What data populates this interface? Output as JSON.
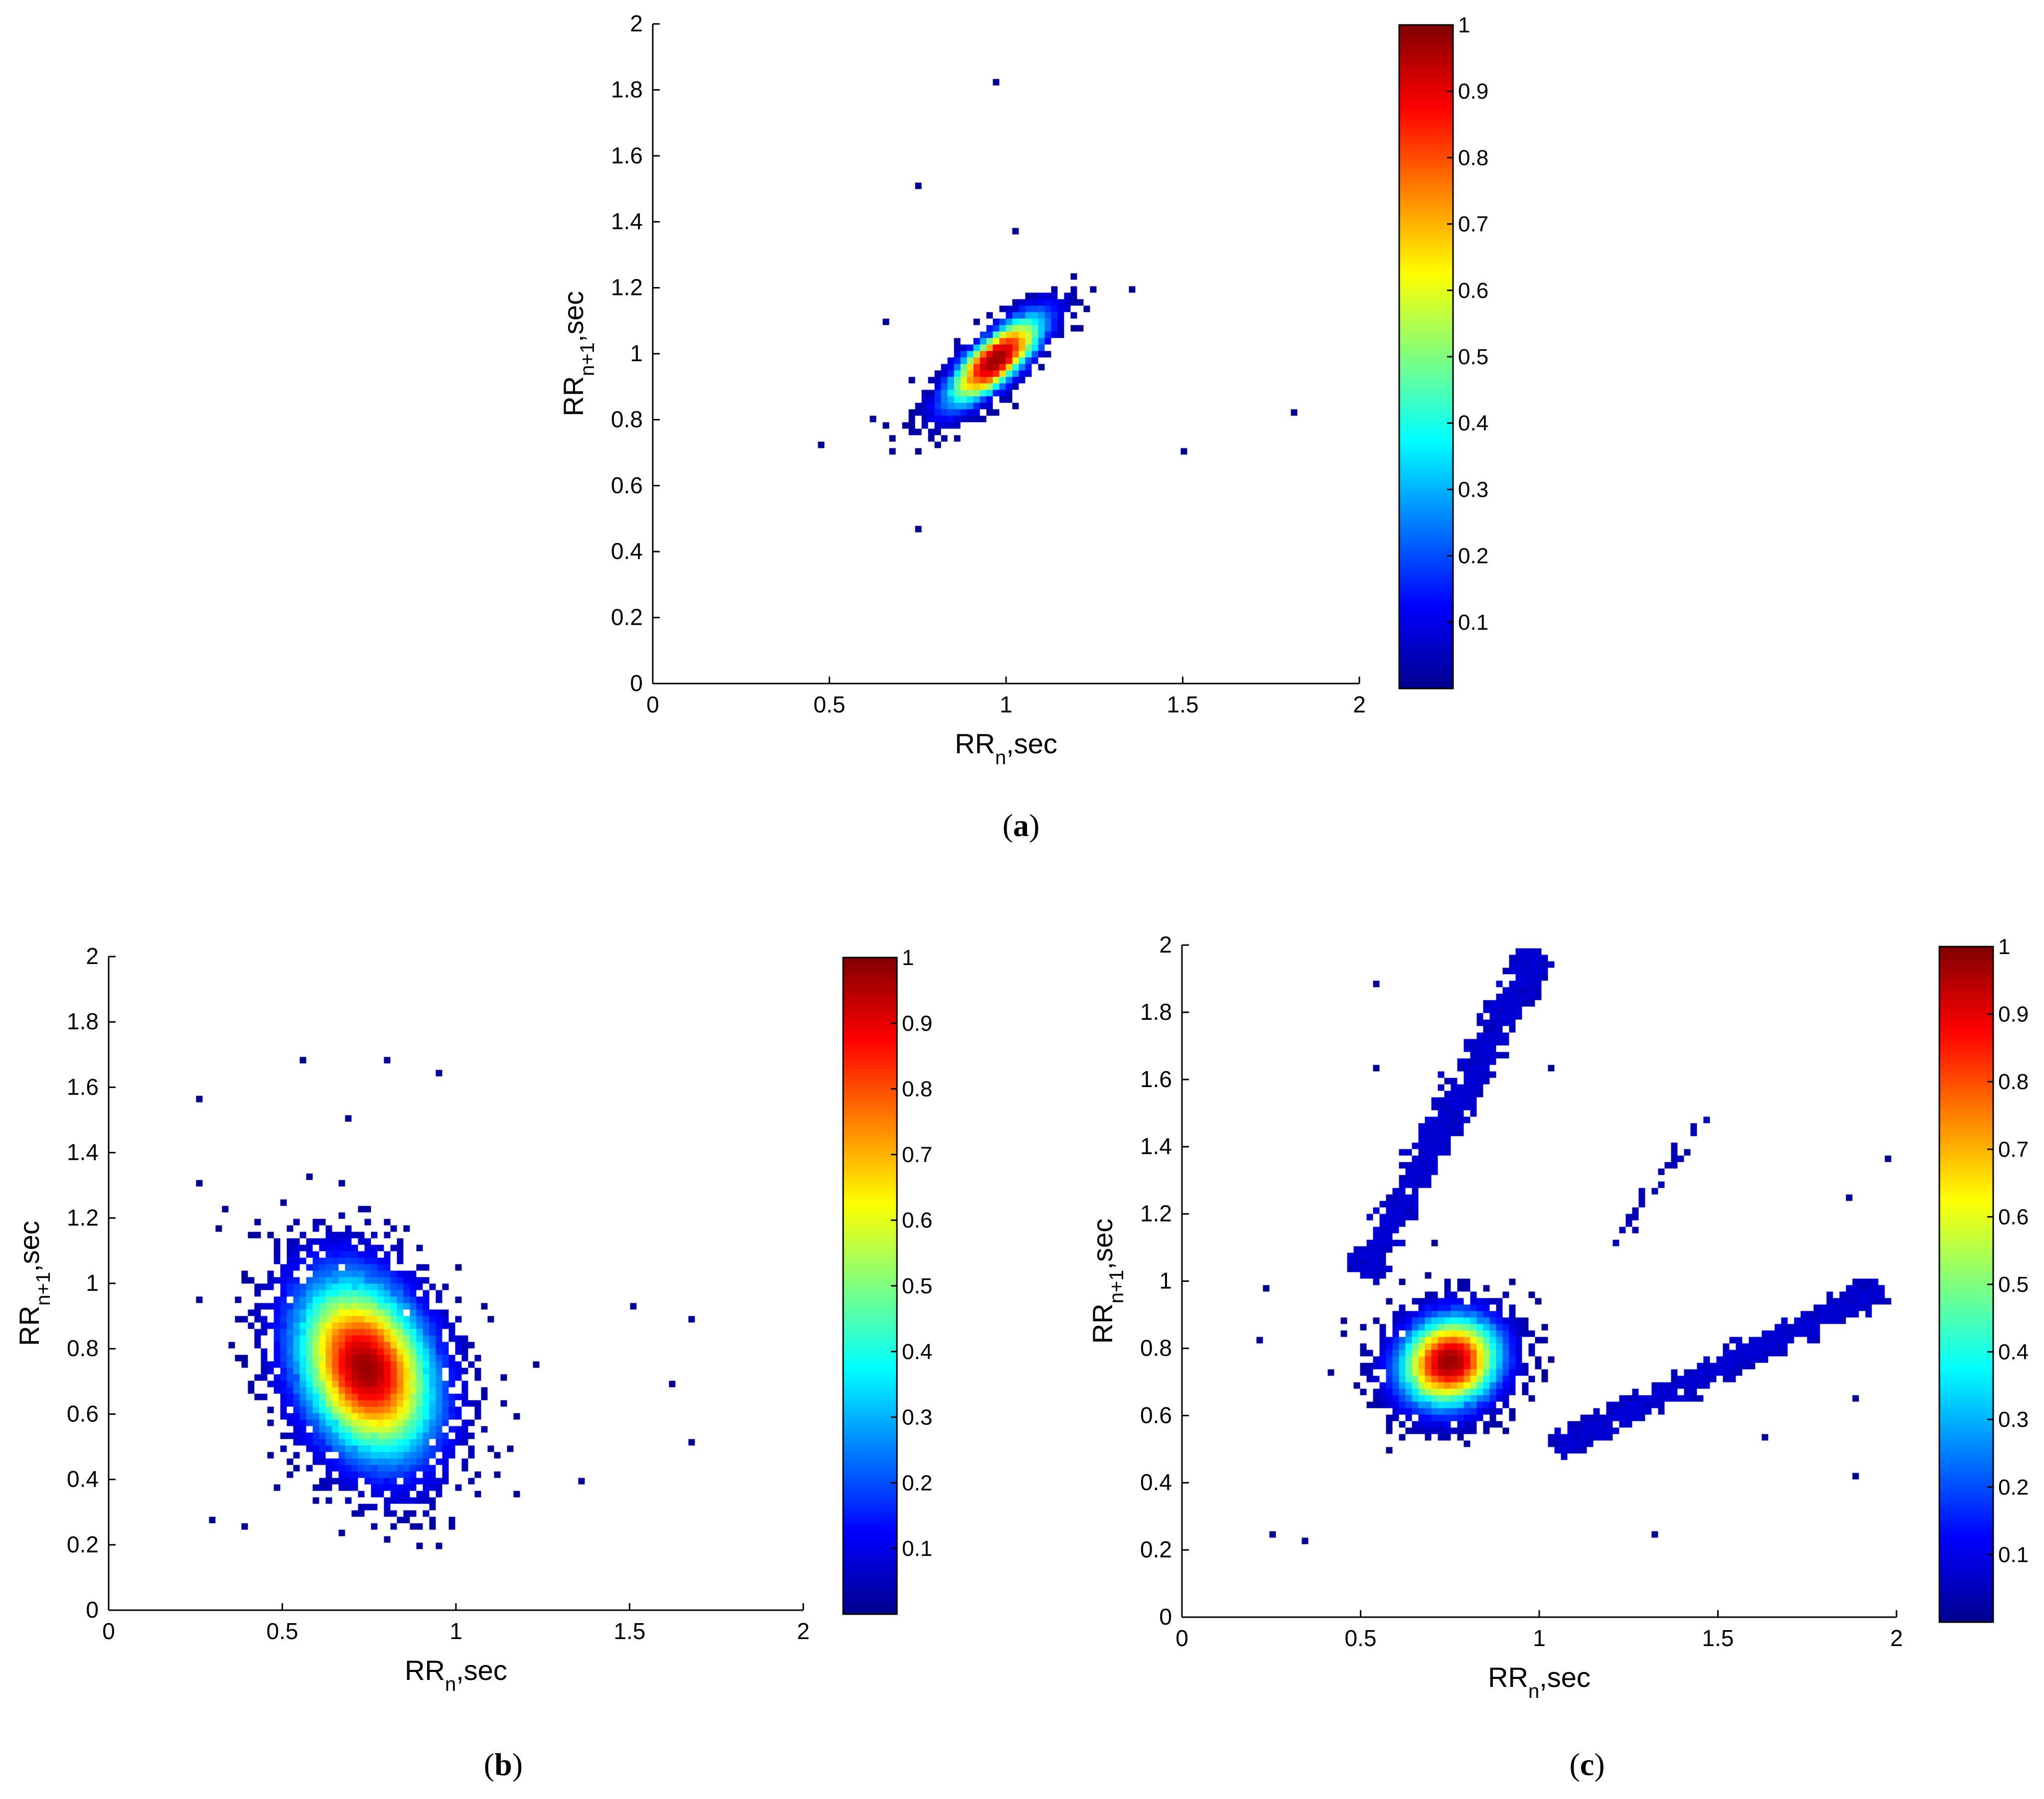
{
  "panels": [
    {
      "caption_letter": "a",
      "chart_data": {
        "type": "heatmap",
        "xlabel_main": "RR",
        "xlabel_sub": "n",
        "xlabel_rest": ",sec",
        "ylabel_main": "RR",
        "ylabel_sub": "n+1",
        "ylabel_rest": ",sec",
        "xlim": [
          0,
          2
        ],
        "ylim": [
          0,
          2
        ],
        "xticks": [
          "0",
          "0.5",
          "1",
          "1.5",
          "2"
        ],
        "yticks": [
          "0",
          "0.2",
          "0.4",
          "0.6",
          "0.8",
          "1",
          "1.2",
          "1.4",
          "1.6",
          "1.8",
          "2"
        ],
        "colorbar": {
          "colormap": "jet",
          "range": [
            0,
            1
          ],
          "ticks": [
            "0.1",
            "0.2",
            "0.3",
            "0.4",
            "0.5",
            "0.6",
            "0.7",
            "0.8",
            "0.9",
            "1"
          ]
        },
        "clusters": [
          {
            "center": [
              0.97,
              0.98
            ],
            "spread_major": 0.21,
            "spread_minor": 0.035,
            "angle_deg": 45,
            "count": 2600,
            "peak_density": 1.0
          }
        ],
        "outliers": [
          [
            0.98,
            1.82
          ],
          [
            0.75,
            1.5
          ],
          [
            1.5,
            0.7
          ],
          [
            1.82,
            0.83
          ],
          [
            1.03,
            1.37
          ],
          [
            0.76,
            0.46
          ],
          [
            0.63,
            0.8
          ],
          [
            0.66,
            1.1
          ],
          [
            1.35,
            1.2
          ],
          [
            0.48,
            0.72
          ]
        ]
      }
    },
    {
      "caption_letter": "b",
      "chart_data": {
        "type": "heatmap",
        "xlabel_main": "RR",
        "xlabel_sub": "n",
        "xlabel_rest": ",sec",
        "ylabel_main": "RR",
        "ylabel_sub": "n+1",
        "ylabel_rest": ",sec",
        "xlim": [
          0,
          2
        ],
        "ylim": [
          0,
          2
        ],
        "xticks": [
          "0",
          "0.5",
          "1",
          "1.5",
          "2"
        ],
        "yticks": [
          "0",
          "0.2",
          "0.4",
          "0.6",
          "0.8",
          "1",
          "1.2",
          "1.4",
          "1.6",
          "1.8",
          "2"
        ],
        "colorbar": {
          "colormap": "jet",
          "range": [
            0,
            1
          ],
          "ticks": [
            "0.1",
            "0.2",
            "0.3",
            "0.4",
            "0.5",
            "0.6",
            "0.7",
            "0.8",
            "0.9",
            "1"
          ]
        },
        "clusters": [
          {
            "center": [
              0.74,
              0.74
            ],
            "spread_major": 0.22,
            "spread_minor": 0.17,
            "angle_deg": 20,
            "count": 7000,
            "peak_density": 1.0
          }
        ],
        "outliers": [
          [
            0.26,
            1.56
          ],
          [
            0.27,
            1.31
          ],
          [
            0.56,
            1.68
          ],
          [
            0.81,
            1.69
          ],
          [
            0.96,
            1.65
          ],
          [
            1.36,
            0.4
          ],
          [
            1.67,
            0.52
          ],
          [
            1.68,
            0.89
          ],
          [
            1.62,
            0.7
          ],
          [
            0.29,
            0.28
          ],
          [
            0.4,
            0.25
          ],
          [
            1.52,
            0.92
          ]
        ]
      }
    },
    {
      "caption_letter": "c",
      "chart_data": {
        "type": "heatmap",
        "xlabel_main": "RR",
        "xlabel_sub": "n",
        "xlabel_rest": ",sec",
        "ylabel_main": "RR",
        "ylabel_sub": "n+1",
        "ylabel_rest": ",sec",
        "xlim": [
          0,
          2
        ],
        "ylim": [
          0,
          2
        ],
        "xticks": [
          "0",
          "0.5",
          "1",
          "1.5",
          "2"
        ],
        "yticks": [
          "0",
          "0.2",
          "0.4",
          "0.6",
          "0.8",
          "1",
          "1.2",
          "1.4",
          "1.6",
          "1.8",
          "2"
        ],
        "colorbar": {
          "colormap": "jet",
          "range": [
            0,
            1
          ],
          "ticks": [
            "0.1",
            "0.2",
            "0.3",
            "0.4",
            "0.5",
            "0.6",
            "0.7",
            "0.8",
            "0.9",
            "1"
          ]
        },
        "clusters": [
          {
            "center": [
              0.75,
              0.76
            ],
            "spread_major": 0.17,
            "spread_minor": 0.075,
            "angle_deg": 35,
            "count": 3800,
            "peak_density": 1.0
          }
        ],
        "bands": [
          {
            "from": [
              0.5,
              1.02
            ],
            "to": [
              1.0,
              1.98
            ],
            "width": 0.022,
            "count": 900,
            "density": 0.05
          },
          {
            "from": [
              1.04,
              0.5
            ],
            "to": [
              1.96,
              0.98
            ],
            "width": 0.018,
            "count": 800,
            "density": 0.05
          },
          {
            "from": [
              1.2,
              1.1
            ],
            "to": [
              1.46,
              1.48
            ],
            "width": 0.01,
            "count": 35,
            "density": 0.03
          }
        ],
        "outliers": [
          [
            0.55,
            1.64
          ],
          [
            0.55,
            1.88
          ],
          [
            1.03,
            1.63
          ],
          [
            0.24,
            0.97
          ],
          [
            0.22,
            0.83
          ],
          [
            1.33,
            0.24
          ],
          [
            1.87,
            1.24
          ],
          [
            1.98,
            1.36
          ],
          [
            0.35,
            0.22
          ],
          [
            0.25,
            0.25
          ],
          [
            1.63,
            0.53
          ],
          [
            1.89,
            0.66
          ],
          [
            1.88,
            0.42
          ]
        ]
      }
    }
  ]
}
